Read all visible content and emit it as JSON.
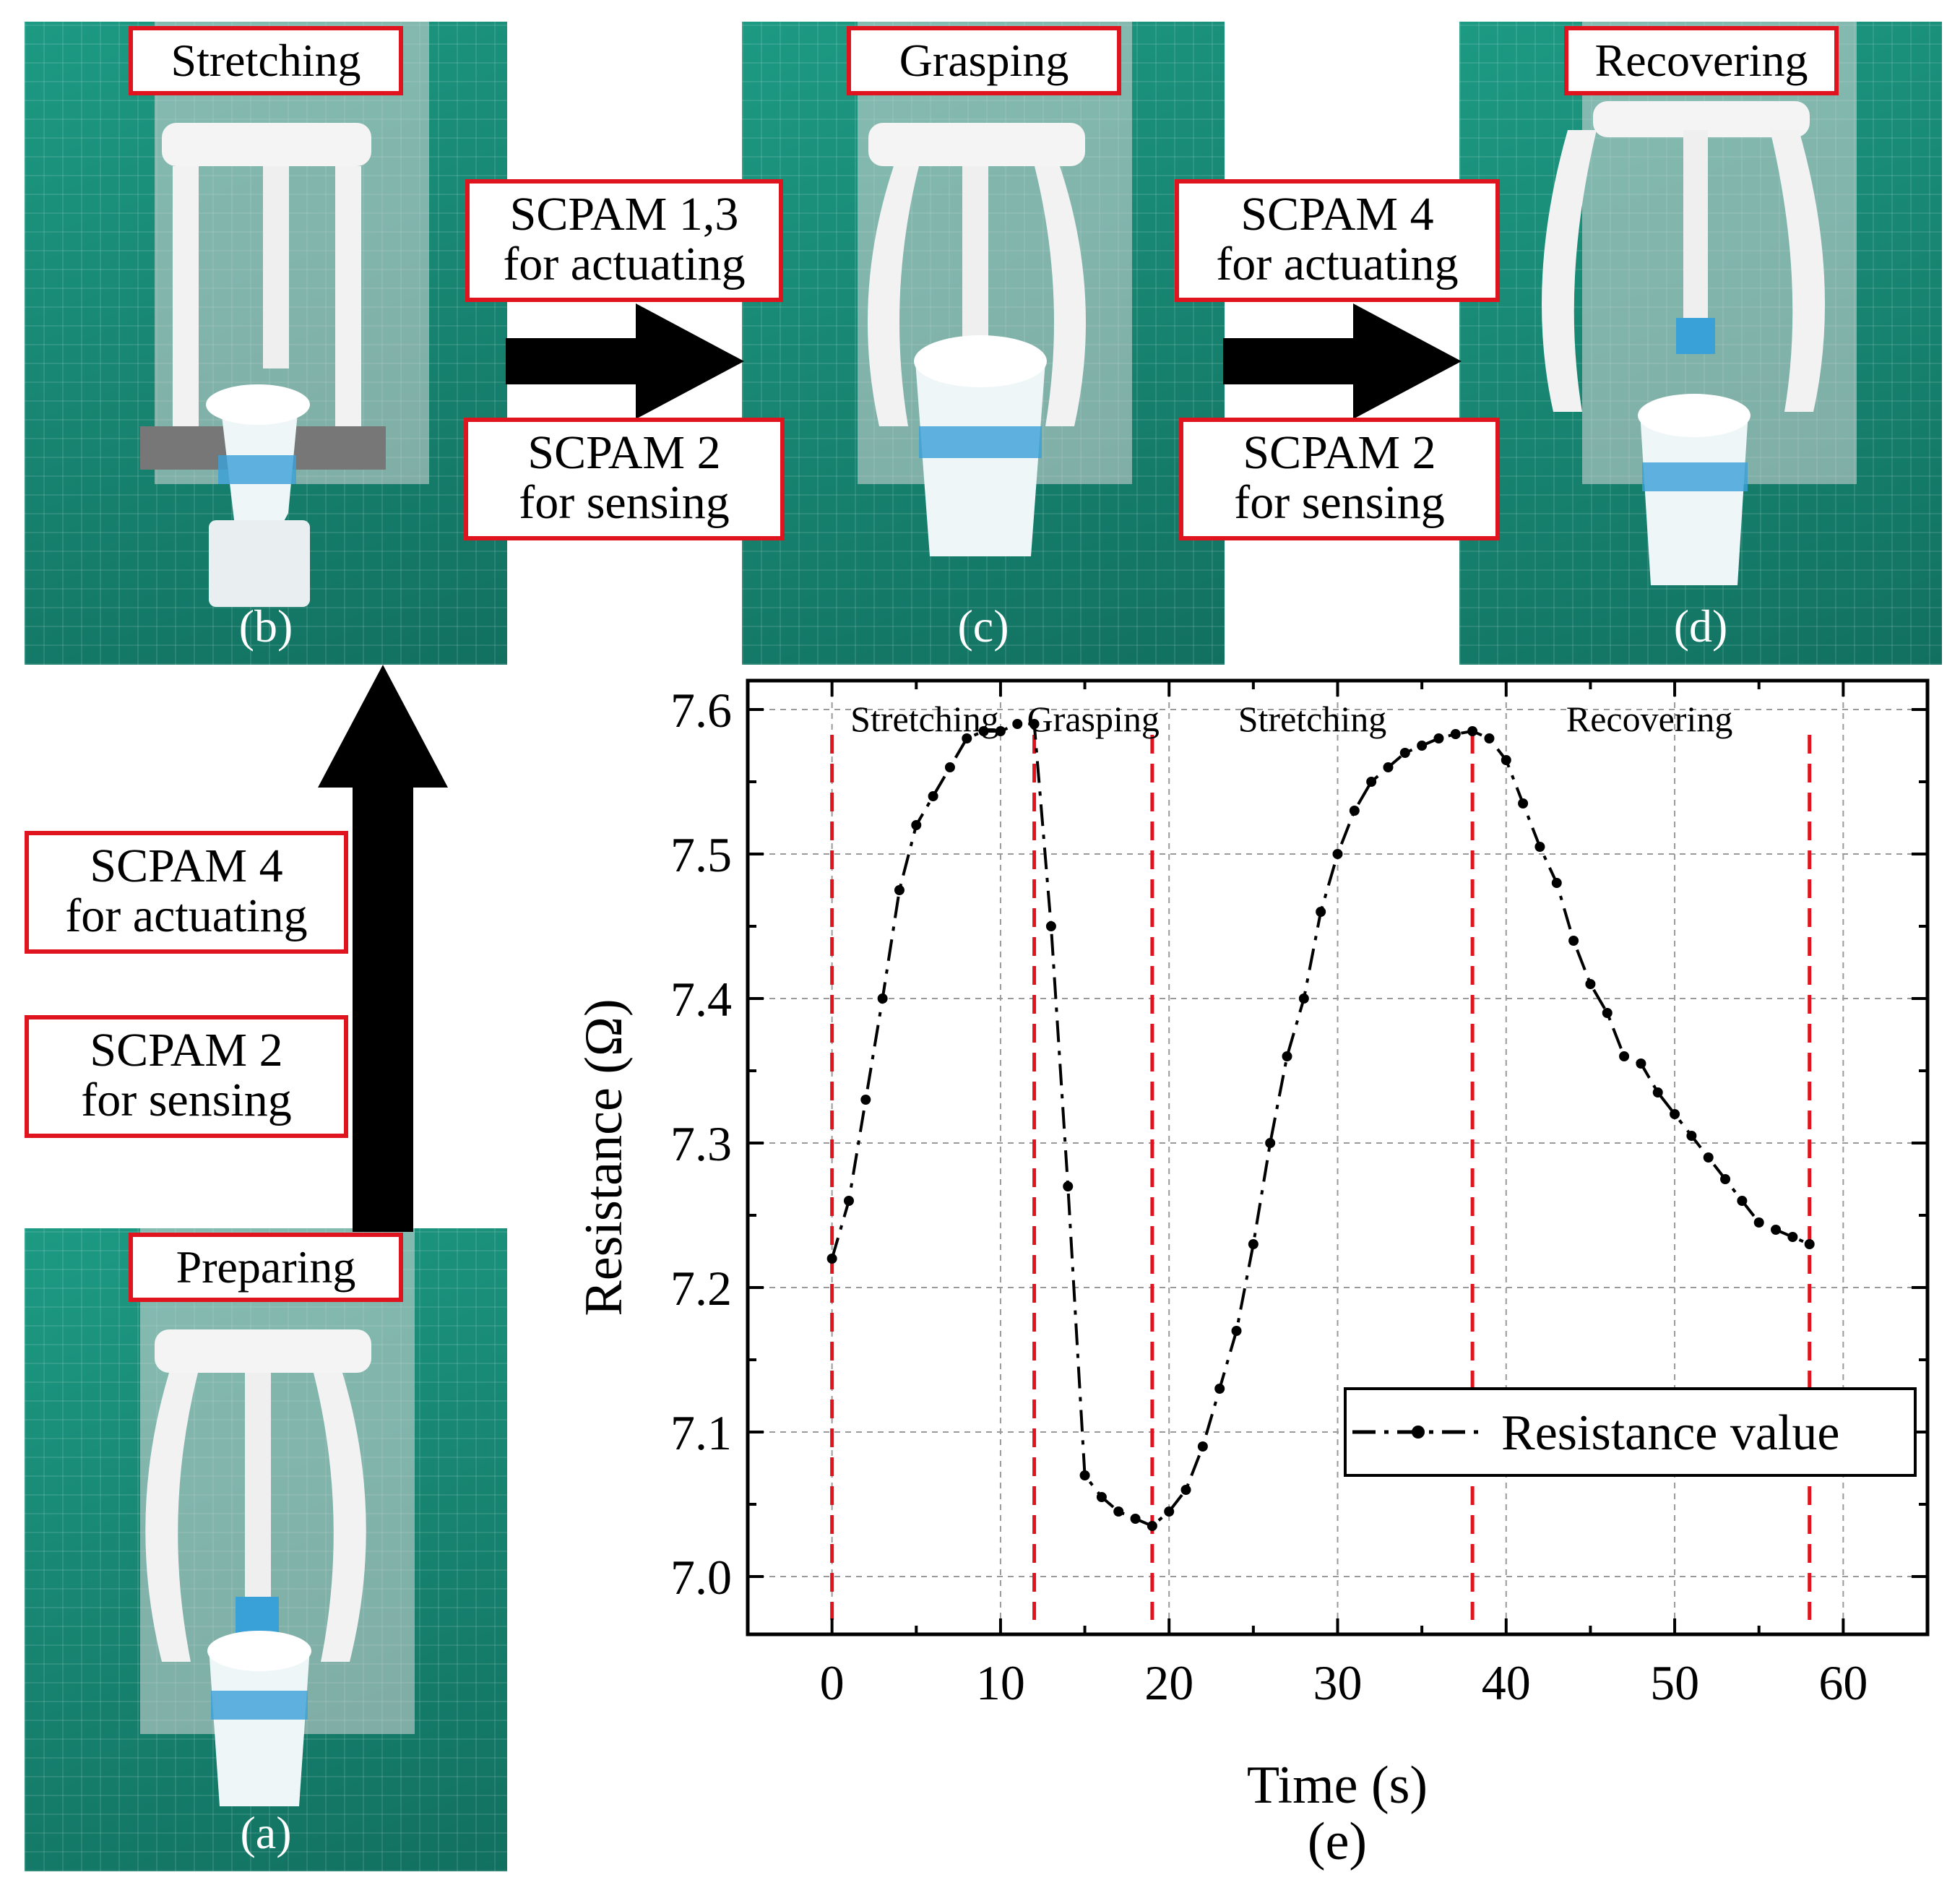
{
  "panels": [
    {
      "id": "b",
      "title": "Stretching",
      "letter": "(b)"
    },
    {
      "id": "c",
      "title": "Grasping",
      "letter": "(c)"
    },
    {
      "id": "d",
      "title": "Recovering",
      "letter": "(d)"
    },
    {
      "id": "a",
      "title": "Preparing",
      "letter": "(a)"
    }
  ],
  "labels": {
    "bc_top": [
      "SCPAM 1,3",
      "for actuating"
    ],
    "bc_bottom": [
      "SCPAM 2",
      "for sensing"
    ],
    "cd_top": [
      "SCPAM 4",
      "for actuating"
    ],
    "cd_bottom": [
      "SCPAM 2",
      "for sensing"
    ],
    "ab_top": [
      "SCPAM 4",
      "for actuating"
    ],
    "ab_bottom": [
      "SCPAM 2",
      "for sensing"
    ]
  },
  "colors": {
    "tag_border": "#e0141e",
    "phase_line": "#e0141e",
    "series": "#000000",
    "mat": "#15826f"
  },
  "chart_data": {
    "type": "line",
    "panel_label": "(e)",
    "xlabel": "Time (s)",
    "ylabel": "Resistance (Ω)",
    "xlim": [
      -5,
      65
    ],
    "ylim": [
      6.96,
      7.62
    ],
    "xticks": [
      0,
      10,
      20,
      30,
      40,
      50,
      60
    ],
    "yticks": [
      7.0,
      7.1,
      7.2,
      7.3,
      7.4,
      7.5,
      7.6
    ],
    "ytick_labels": [
      "7.0",
      "7.1",
      "7.2",
      "7.3",
      "7.4",
      "7.5",
      "7.6"
    ],
    "grid": true,
    "legend": {
      "label": "Resistance value",
      "position": "bottom-right"
    },
    "series": [
      {
        "name": "Resistance value",
        "x": [
          0,
          1,
          2,
          3,
          4,
          5,
          6,
          7,
          8,
          9,
          10,
          11,
          12,
          13,
          14,
          15,
          16,
          17,
          18,
          19,
          20,
          21,
          22,
          23,
          24,
          25,
          26,
          27,
          28,
          29,
          30,
          31,
          32,
          33,
          34,
          35,
          36,
          37,
          38,
          39,
          40,
          41,
          42,
          43,
          44,
          45,
          46,
          47,
          48,
          49,
          50,
          51,
          52,
          53,
          54,
          55,
          56,
          57,
          58
        ],
        "y": [
          7.22,
          7.26,
          7.33,
          7.4,
          7.475,
          7.52,
          7.54,
          7.56,
          7.58,
          7.585,
          7.585,
          7.59,
          7.59,
          7.45,
          7.27,
          7.07,
          7.055,
          7.045,
          7.04,
          7.035,
          7.045,
          7.06,
          7.09,
          7.13,
          7.17,
          7.23,
          7.3,
          7.36,
          7.4,
          7.46,
          7.5,
          7.53,
          7.55,
          7.56,
          7.57,
          7.575,
          7.58,
          7.583,
          7.585,
          7.58,
          7.565,
          7.535,
          7.505,
          7.48,
          7.44,
          7.41,
          7.39,
          7.36,
          7.355,
          7.335,
          7.32,
          7.305,
          7.29,
          7.275,
          7.26,
          7.245,
          7.24,
          7.235,
          7.23
        ]
      }
    ],
    "phase_lines_x": [
      0,
      12,
      19,
      38,
      58
    ],
    "phases": [
      {
        "label": "Stretching",
        "x_center": 5.5
      },
      {
        "label": "Grasping",
        "x_center": 15.5
      },
      {
        "label": "Stretching",
        "x_center": 28.5
      },
      {
        "label": "Recovering",
        "x_center": 48.5
      }
    ]
  }
}
